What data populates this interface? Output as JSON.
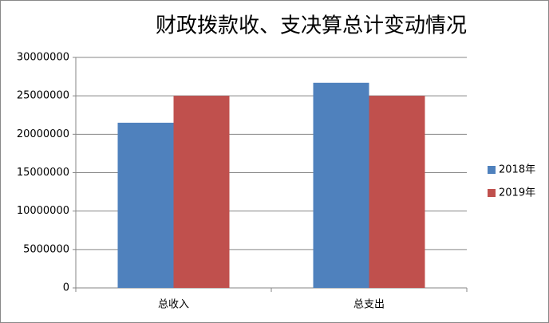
{
  "chart_data": {
    "type": "bar",
    "title": "财政拨款收、支决算总计变动情况",
    "categories": [
      "总收入",
      "总支出"
    ],
    "series": [
      {
        "name": "2018年",
        "color": "#4f81bd",
        "values": [
          21500000,
          26700000
        ]
      },
      {
        "name": "2019年",
        "color": "#c0504d",
        "values": [
          25000000,
          25000000
        ]
      }
    ],
    "ylim": [
      0,
      30000000
    ],
    "yticks": [
      0,
      5000000,
      10000000,
      15000000,
      20000000,
      25000000,
      30000000
    ],
    "grid": true,
    "legend": "right"
  }
}
